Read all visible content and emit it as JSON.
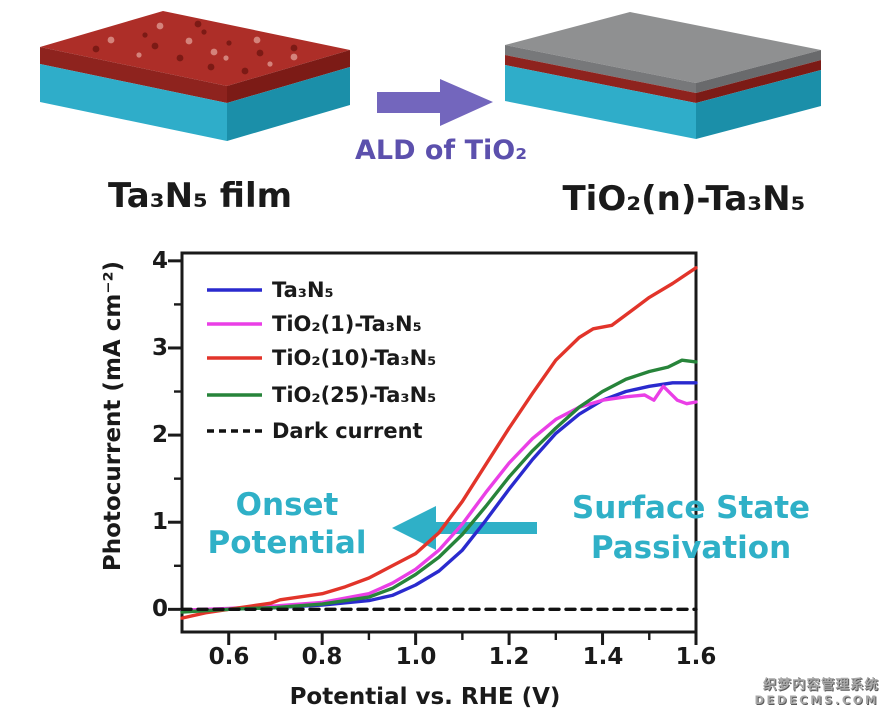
{
  "diagram": {
    "left_label": "Ta₃N₅ film",
    "right_label": "TiO₂(n)-Ta₃N₅",
    "arrow_label": "ALD of TiO₂",
    "colors": {
      "film_red_top": "#ad2e28",
      "film_red_front": "#8e231e",
      "film_red_side": "#7c1b16",
      "substrate_cyan_front": "#2fadc9",
      "substrate_cyan_side": "#1b8fa9",
      "tio2_gray_top": "#8f9091",
      "tio2_gray_front": "#77787a",
      "tio2_gray_side": "#696a6c",
      "arrow_purple": "#7366bd",
      "arrow_text_purple": "#5c50ad",
      "dot_dark": "#7c1a15",
      "dot_light": "#d4837b"
    }
  },
  "chart_data": {
    "type": "line",
    "title": "",
    "xlabel": "Potential vs. RHE (V)",
    "ylabel": "Photocurrent (mA cm⁻²)",
    "xlim": [
      0.5,
      1.6
    ],
    "ylim": [
      -0.26,
      4.09
    ],
    "x_ticks": [
      "0.6",
      "0.8",
      "1.0",
      "1.2",
      "1.4",
      "1.6"
    ],
    "y_ticks": [
      "0",
      "1",
      "2",
      "3",
      "4"
    ],
    "grid": false,
    "legend_position": "top-left",
    "frame_color": "#1a1a1a",
    "series": [
      {
        "id": "ta3n5",
        "label": "Ta₃N₅",
        "color": "#2a2ace",
        "dash": false,
        "points": [
          [
            0.5,
            -0.02
          ],
          [
            0.6,
            0.0
          ],
          [
            0.7,
            0.02
          ],
          [
            0.8,
            0.05
          ],
          [
            0.9,
            0.1
          ],
          [
            0.95,
            0.16
          ],
          [
            1.0,
            0.28
          ],
          [
            1.05,
            0.44
          ],
          [
            1.1,
            0.68
          ],
          [
            1.15,
            1.02
          ],
          [
            1.2,
            1.38
          ],
          [
            1.25,
            1.72
          ],
          [
            1.3,
            2.02
          ],
          [
            1.35,
            2.24
          ],
          [
            1.4,
            2.4
          ],
          [
            1.45,
            2.5
          ],
          [
            1.5,
            2.56
          ],
          [
            1.55,
            2.6
          ],
          [
            1.6,
            2.6
          ]
        ]
      },
      {
        "id": "tio2-1",
        "label": "TiO₂(1)-Ta₃N₅",
        "color": "#ea3fe6",
        "dash": false,
        "points": [
          [
            0.5,
            -0.01
          ],
          [
            0.6,
            0.01
          ],
          [
            0.7,
            0.04
          ],
          [
            0.8,
            0.08
          ],
          [
            0.9,
            0.18
          ],
          [
            0.95,
            0.3
          ],
          [
            1.0,
            0.46
          ],
          [
            1.05,
            0.68
          ],
          [
            1.1,
            0.98
          ],
          [
            1.15,
            1.34
          ],
          [
            1.2,
            1.68
          ],
          [
            1.25,
            1.96
          ],
          [
            1.3,
            2.18
          ],
          [
            1.35,
            2.32
          ],
          [
            1.4,
            2.4
          ],
          [
            1.45,
            2.44
          ],
          [
            1.49,
            2.46
          ],
          [
            1.51,
            2.4
          ],
          [
            1.53,
            2.56
          ],
          [
            1.56,
            2.4
          ],
          [
            1.58,
            2.36
          ],
          [
            1.6,
            2.38
          ]
        ]
      },
      {
        "id": "tio2-10",
        "label": "TiO₂(10)-Ta₃N₅",
        "color": "#e2342a",
        "dash": false,
        "points": [
          [
            0.5,
            -0.1
          ],
          [
            0.55,
            -0.04
          ],
          [
            0.6,
            0.0
          ],
          [
            0.65,
            0.04
          ],
          [
            0.69,
            0.07
          ],
          [
            0.71,
            0.11
          ],
          [
            0.8,
            0.18
          ],
          [
            0.85,
            0.26
          ],
          [
            0.9,
            0.36
          ],
          [
            0.95,
            0.5
          ],
          [
            1.0,
            0.64
          ],
          [
            1.05,
            0.88
          ],
          [
            1.1,
            1.24
          ],
          [
            1.15,
            1.66
          ],
          [
            1.2,
            2.08
          ],
          [
            1.25,
            2.48
          ],
          [
            1.3,
            2.86
          ],
          [
            1.35,
            3.12
          ],
          [
            1.38,
            3.22
          ],
          [
            1.42,
            3.26
          ],
          [
            1.45,
            3.38
          ],
          [
            1.5,
            3.58
          ],
          [
            1.55,
            3.74
          ],
          [
            1.6,
            3.92
          ]
        ]
      },
      {
        "id": "tio2-25",
        "label": "TiO₂(25)-Ta₃N₅",
        "color": "#27843a",
        "dash": false,
        "points": [
          [
            0.5,
            -0.03
          ],
          [
            0.6,
            0.0
          ],
          [
            0.7,
            0.02
          ],
          [
            0.8,
            0.06
          ],
          [
            0.9,
            0.14
          ],
          [
            0.95,
            0.24
          ],
          [
            1.0,
            0.4
          ],
          [
            1.05,
            0.6
          ],
          [
            1.1,
            0.86
          ],
          [
            1.15,
            1.18
          ],
          [
            1.2,
            1.52
          ],
          [
            1.25,
            1.82
          ],
          [
            1.3,
            2.08
          ],
          [
            1.35,
            2.32
          ],
          [
            1.4,
            2.5
          ],
          [
            1.45,
            2.64
          ],
          [
            1.5,
            2.73
          ],
          [
            1.54,
            2.78
          ],
          [
            1.57,
            2.86
          ],
          [
            1.6,
            2.84
          ]
        ]
      },
      {
        "id": "dark-current",
        "label": "Dark current",
        "color": "#111111",
        "dash": true,
        "points": [
          [
            0.5,
            0.0
          ],
          [
            1.6,
            0.0
          ]
        ]
      }
    ],
    "annotations": [
      {
        "id": "onset",
        "line1": "Onset",
        "line2": "Potential",
        "color": "#2fb0c7"
      },
      {
        "id": "passivation",
        "line1": "Surface State",
        "line2": "Passivation",
        "color": "#2fb0c7"
      }
    ]
  },
  "watermark": {
    "line1": "织梦内容管理系统",
    "line2": "DEDECMS.COM"
  }
}
